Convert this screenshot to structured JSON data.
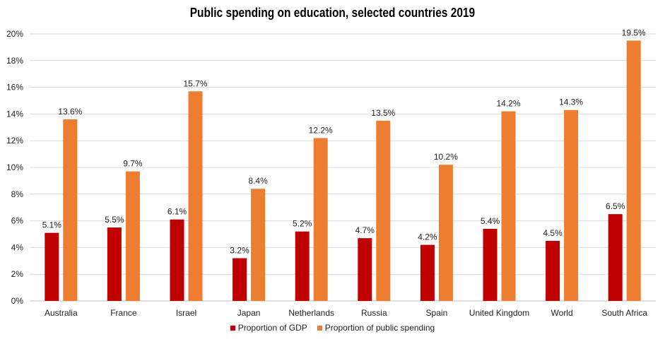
{
  "colors": {
    "gdp": "#c00000",
    "public": "#ed7d31",
    "grid": "#d9d9d9"
  },
  "chart_data": {
    "type": "bar",
    "title": "Public spending on education, selected countries 2019",
    "categories": [
      "Australia",
      "France",
      "Israel",
      "Japan",
      "Netherlands",
      "Russia",
      "Spain",
      "United Kingdom",
      "World",
      "South Africa"
    ],
    "series": [
      {
        "name": "Proportion of GDP",
        "values": [
          5.1,
          5.5,
          6.1,
          3.2,
          5.2,
          4.7,
          4.2,
          5.4,
          4.5,
          6.5
        ],
        "labels": [
          "5.1%",
          "5.5%",
          "6.1%",
          "3.2%",
          "5.2%",
          "4.7%",
          "4.2%",
          "5.4%",
          "4.5%",
          "6.5%"
        ]
      },
      {
        "name": "Proportion of public spending",
        "values": [
          13.6,
          9.7,
          15.7,
          8.4,
          12.2,
          13.5,
          10.2,
          14.2,
          14.3,
          19.5
        ],
        "labels": [
          "13.6%",
          "9.7%",
          "15.7%",
          "8.4%",
          "12.2%",
          "13.5%",
          "10.2%",
          "14.2%",
          "14.3%",
          "19.5%"
        ]
      }
    ],
    "ylim": [
      0,
      20
    ],
    "yticks": [
      "0%",
      "2%",
      "4%",
      "6%",
      "8%",
      "10%",
      "12%",
      "14%",
      "16%",
      "18%",
      "20%"
    ],
    "grid": true,
    "legend_position": "bottom"
  }
}
